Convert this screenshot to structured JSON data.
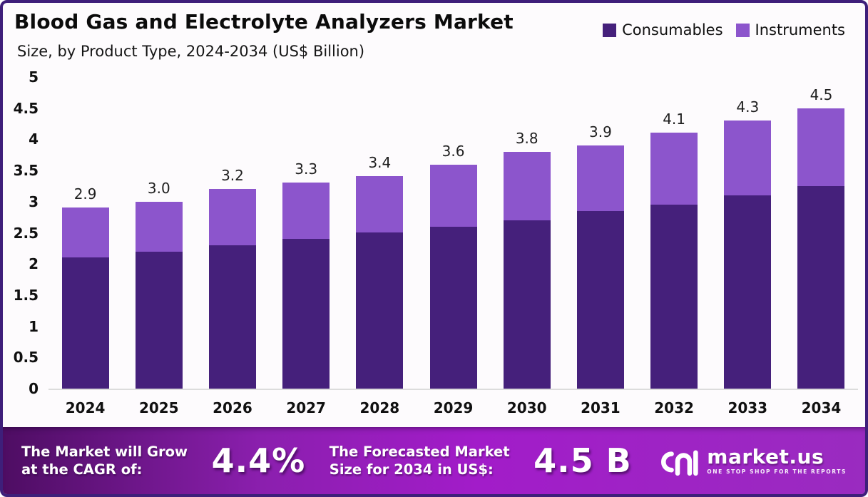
{
  "header": {
    "title": "Blood Gas and Electrolyte Analyzers Market",
    "subtitle": "Size, by Product Type, 2024-2034 (US$ Billion)"
  },
  "legend": {
    "items": [
      {
        "label": "Consumables",
        "color": "#45207b"
      },
      {
        "label": "Instruments",
        "color": "#8c55cc"
      }
    ]
  },
  "colors": {
    "consumables": "#45207b",
    "instruments": "#8c55cc",
    "frame_border": "#3e1f7a",
    "baseline": "#dcdcdc",
    "banner_gradient_left": "#4e0d63",
    "banner_gradient_right": "#9a2bc0"
  },
  "y_axis": {
    "ticks": [
      "0",
      "0.5",
      "1",
      "1.5",
      "2",
      "2.5",
      "3",
      "3.5",
      "4",
      "4.5",
      "5"
    ],
    "max": 5
  },
  "chart_data": {
    "type": "bar",
    "subtype": "stacked",
    "title": "Blood Gas and Electrolyte Analyzers Market Size, by Product Type, 2024-2034 (US$ Billion)",
    "categories": [
      "2024",
      "2025",
      "2026",
      "2027",
      "2028",
      "2029",
      "2030",
      "2031",
      "2032",
      "2033",
      "2034"
    ],
    "series": [
      {
        "name": "Consumables",
        "values": [
          2.1,
          2.2,
          2.3,
          2.4,
          2.5,
          2.6,
          2.7,
          2.85,
          2.95,
          3.1,
          3.25
        ]
      },
      {
        "name": "Instruments",
        "values": [
          0.8,
          0.8,
          0.9,
          0.9,
          0.9,
          1.0,
          1.1,
          1.05,
          1.15,
          1.2,
          1.25
        ]
      }
    ],
    "totals": [
      2.9,
      3.0,
      3.2,
      3.3,
      3.4,
      3.6,
      3.8,
      3.9,
      4.1,
      4.3,
      4.5
    ],
    "total_labels": [
      "2.9",
      "3.0",
      "3.2",
      "3.3",
      "3.4",
      "3.6",
      "3.8",
      "3.9",
      "4.1",
      "4.3",
      "4.5"
    ],
    "xlabel": "",
    "ylabel": "US$ Billion",
    "ylim": [
      0,
      5
    ],
    "grid": false,
    "legend_position": "top-right"
  },
  "banner": {
    "cagr_label_line1": "The Market will Grow",
    "cagr_label_line2": "at the CAGR of:",
    "cagr_value": "4.4%",
    "forecast_label_line1": "The Forecasted Market",
    "forecast_label_line2": "Size for 2034 in US$:",
    "forecast_value": "4.5 B",
    "logo": {
      "name": "market.us",
      "tagline": "ONE STOP SHOP FOR THE REPORTS"
    }
  }
}
